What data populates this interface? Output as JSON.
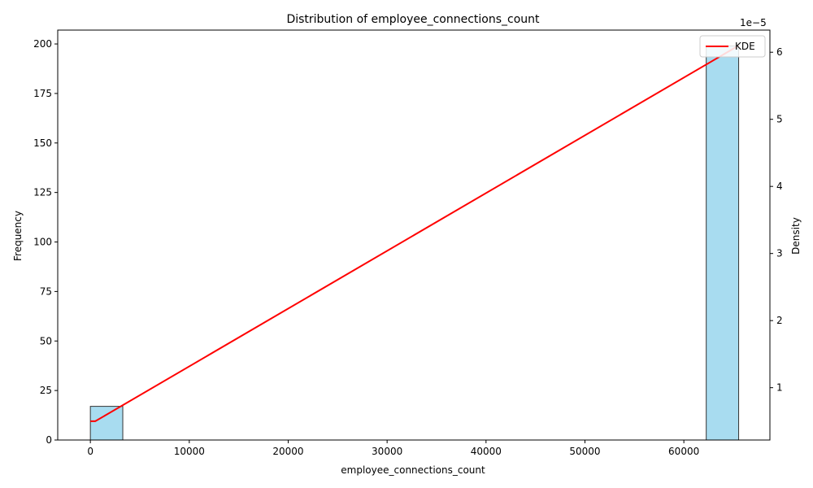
{
  "chart_data": {
    "type": "bar",
    "title": "Distribution of employee_connections_count",
    "xlabel": "employee_connections_count",
    "ylabel": "Frequency",
    "ylabel_right": "Density",
    "right_axis_multiplier": "1e−5",
    "xlim": [
      -3300,
      68700
    ],
    "ylim": [
      0,
      207
    ],
    "y2lim": [
      0.22,
      6.33
    ],
    "x_ticks": [
      0,
      10000,
      20000,
      30000,
      40000,
      50000,
      60000
    ],
    "y_ticks": [
      0,
      25,
      50,
      75,
      100,
      125,
      150,
      175,
      200
    ],
    "y2_ticks": [
      1,
      2,
      3,
      4,
      5,
      6
    ],
    "series": [
      {
        "type": "histogram",
        "color": "#a8dcf0",
        "bins": [
          {
            "x0": 0,
            "x1": 3277,
            "count": 17
          },
          {
            "x0": 62263,
            "x1": 65540,
            "count": 199
          }
        ]
      },
      {
        "name": "KDE",
        "type": "line",
        "color": "#ff0000",
        "axis": "right",
        "points": [
          [
            0,
            0.5
          ],
          [
            500,
            0.5
          ],
          [
            65540,
            6.1
          ]
        ]
      }
    ],
    "legend": {
      "position": "top-right",
      "entries": [
        "KDE"
      ]
    },
    "grid": false
  }
}
